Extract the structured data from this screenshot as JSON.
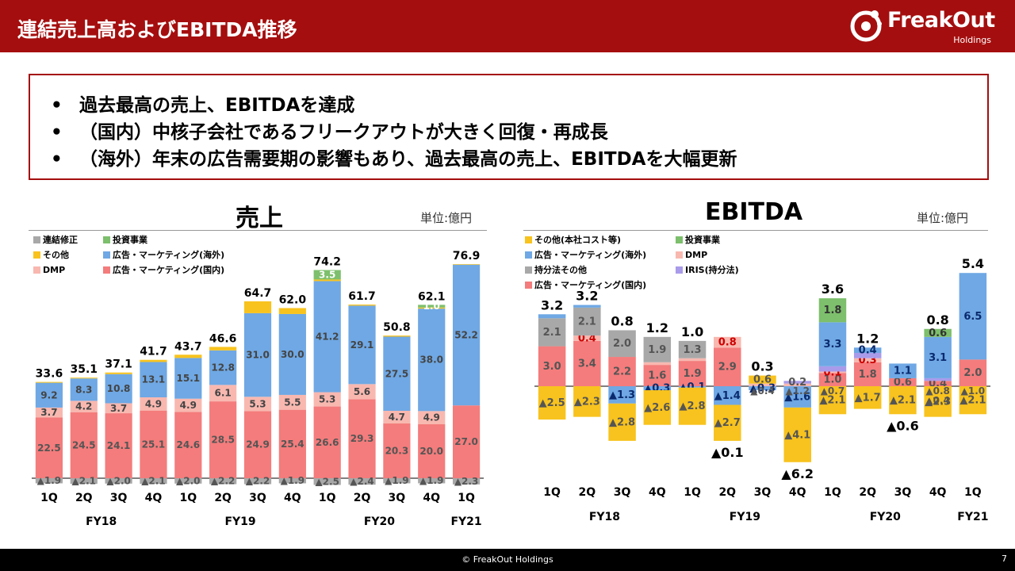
{
  "header": {
    "title": "連結売上高およびEBITDA推移",
    "logo_text": "FreakOut",
    "logo_sub": "Holdings"
  },
  "summary": {
    "bullets": [
      "過去最高の売上、EBITDAを達成",
      "（国内）中核子会社であるフリークアウトが大きく回復・再成長",
      "（海外）年末の広告需要期の影響もあり、過去最高の売上、EBITDAを大幅更新"
    ]
  },
  "colors": {
    "brand": "#a50e0e",
    "ad_domestic": "#f47c7c",
    "dmp": "#f8b8b0",
    "ad_overseas": "#6fa8e4",
    "other": "#f8c31e",
    "investment": "#7dbf6c",
    "consolidation": "#a8a8a8",
    "equity_other": "#a8a8a8",
    "iris": "#a99bea",
    "neg_label": "#0a2a6e"
  },
  "chart_data": [
    {
      "type": "bar",
      "title": "売上",
      "unit": "単位:億円",
      "quarters": [
        "1Q",
        "2Q",
        "3Q",
        "4Q",
        "1Q",
        "2Q",
        "3Q",
        "4Q",
        "1Q",
        "2Q",
        "3Q",
        "4Q",
        "1Q"
      ],
      "fiscal_years": [
        {
          "label": "FY18",
          "span": [
            0,
            3
          ]
        },
        {
          "label": "FY19",
          "span": [
            4,
            7
          ]
        },
        {
          "label": "FY20",
          "span": [
            8,
            11
          ]
        },
        {
          "label": "FY21",
          "span": [
            12,
            12
          ]
        }
      ],
      "totals": [
        "33.6",
        "35.1",
        "37.1",
        "41.7",
        "43.7",
        "46.6",
        "64.7",
        "62.0",
        "74.2",
        "61.7",
        "50.8",
        "62.1",
        "76.9"
      ],
      "series": [
        {
          "name": "広告・マーケティング(国内)",
          "key": "ad_domestic",
          "values": [
            22.5,
            24.5,
            24.1,
            25.1,
            24.6,
            28.5,
            24.9,
            25.4,
            26.6,
            29.3,
            20.3,
            20.0,
            27.0
          ],
          "labels": [
            "22.5",
            "24.5",
            "24.1",
            "25.1",
            "24.6",
            "28.5",
            "24.9",
            "25.4",
            "26.6",
            "29.3",
            "20.3",
            "20.0",
            "27.0"
          ]
        },
        {
          "name": "DMP",
          "key": "dmp",
          "values": [
            3.7,
            4.2,
            3.7,
            4.9,
            4.9,
            6.1,
            5.3,
            5.5,
            5.3,
            5.6,
            4.7,
            4.9,
            0
          ],
          "labels": [
            "3.7",
            "4.2",
            "3.7",
            "4.9",
            "4.9",
            "6.1",
            "5.3",
            "5.5",
            "5.3",
            "5.6",
            "4.7",
            "4.9",
            ""
          ]
        },
        {
          "name": "広告・マーケティング(海外)",
          "key": "ad_overseas",
          "values": [
            9.2,
            8.3,
            10.8,
            13.1,
            15.1,
            12.8,
            31.0,
            30.0,
            41.2,
            29.1,
            27.5,
            38.0,
            52.2
          ],
          "labels": [
            "9.2",
            "8.3",
            "10.8",
            "13.1",
            "15.1",
            "12.8",
            "31.0",
            "30.0",
            "41.2",
            "29.1",
            "27.5",
            "38.0",
            "52.2"
          ]
        },
        {
          "name": "その他",
          "key": "other",
          "values": [
            0.3,
            0.3,
            0.6,
            0.8,
            1.2,
            1.3,
            4.4,
            2.2,
            0.6,
            0.4,
            0.4,
            0.4,
            0.2
          ],
          "labels": [
            "",
            "",
            "",
            "",
            "",
            "",
            "",
            "",
            "",
            "",
            "",
            "",
            ""
          ]
        },
        {
          "name": "投資事業",
          "key": "investment",
          "values": [
            0,
            0,
            0,
            0,
            0,
            0,
            0,
            0,
            3.5,
            0,
            0,
            1.0,
            0
          ],
          "labels": [
            "",
            "",
            "",
            "",
            "",
            "",
            "",
            "",
            "3.5",
            "",
            "",
            "1.0",
            ""
          ]
        },
        {
          "name": "連結修正",
          "key": "consolidation",
          "values": [
            -1.9,
            -2.1,
            -2.0,
            -2.1,
            -2.0,
            -2.2,
            -2.2,
            -1.9,
            -2.5,
            -2.4,
            -1.9,
            -1.9,
            -2.3
          ],
          "labels": [
            "▲1.9",
            "▲2.1",
            "▲2.0",
            "▲2.1",
            "▲2.0",
            "▲2.2",
            "▲2.2",
            "▲1.9",
            "▲2.5",
            "▲2.4",
            "▲1.9",
            "▲1.9",
            "▲2.3"
          ]
        }
      ],
      "legend": [
        {
          "label": "連結修正",
          "key": "consolidation"
        },
        {
          "label": "投資事業",
          "key": "investment"
        },
        {
          "label": "その他",
          "key": "other"
        },
        {
          "label": "広告・マーケティング(海外)",
          "key": "ad_overseas"
        },
        {
          "label": "DMP",
          "key": "dmp"
        },
        {
          "label": "広告・マーケティング(国内)",
          "key": "ad_domestic"
        }
      ]
    },
    {
      "type": "bar",
      "title": "EBITDA",
      "unit": "単位:億円",
      "quarters": [
        "1Q",
        "2Q",
        "3Q",
        "4Q",
        "1Q",
        "2Q",
        "3Q",
        "4Q",
        "1Q",
        "2Q",
        "3Q",
        "4Q",
        "1Q"
      ],
      "fiscal_years": [
        {
          "label": "FY18",
          "span": [
            0,
            3
          ]
        },
        {
          "label": "FY19",
          "span": [
            4,
            7
          ]
        },
        {
          "label": "FY20",
          "span": [
            8,
            11
          ]
        },
        {
          "label": "FY21",
          "span": [
            12,
            12
          ]
        }
      ],
      "totals": [
        "3.2",
        "3.2",
        "0.8",
        "1.2",
        "1.0",
        "▲0.1",
        "0.3",
        "▲6.2",
        "3.6",
        "1.2",
        "▲0.6",
        "0.8",
        "5.4"
      ],
      "series": [
        {
          "name": "広告・マーケティング(国内)",
          "key": "ad_domestic",
          "values": [
            3.0,
            3.4,
            2.2,
            1.6,
            1.9,
            2.9,
            0,
            0,
            1.0,
            1.8,
            0.6,
            0.4,
            2.0
          ],
          "labels": [
            "3.0",
            "3.4",
            "2.2",
            "1.6",
            "1.9",
            "2.9",
            "",
            "",
            "1.0",
            "1.8",
            "0.6",
            "0.4",
            "2.0"
          ]
        },
        {
          "name": "DMP",
          "key": "dmp",
          "values": [
            0,
            0.4,
            0,
            0.2,
            0.2,
            0.8,
            0.2,
            0.2,
            0.1,
            0.3,
            0,
            0,
            0
          ],
          "labels": [
            "",
            "0.4",
            "",
            "",
            "",
            "0.8",
            "",
            "",
            "0.1",
            "0.3",
            "",
            "",
            ""
          ]
        },
        {
          "name": "IRIS(持分法)",
          "key": "iris",
          "values": [
            0,
            0,
            0,
            0,
            0,
            0,
            0,
            0.2,
            0.4,
            0.4,
            0,
            0.2,
            0
          ],
          "labels": [
            "",
            "",
            "",
            "",
            "",
            "",
            "",
            "0.2",
            "",
            "",
            "",
            "",
            ""
          ]
        },
        {
          "name": "持分法その他",
          "key": "equity_other",
          "values": [
            2.1,
            2.1,
            2.0,
            1.9,
            1.3,
            0,
            0,
            0,
            0,
            0,
            0,
            0,
            0
          ],
          "labels": [
            "2.1",
            "2.1",
            "2.0",
            "1.9",
            "1.3",
            "",
            "",
            "",
            "",
            "",
            "",
            "",
            ""
          ]
        },
        {
          "name": "広告・マーケティング(海外)",
          "key": "ad_overseas",
          "values": [
            0.3,
            0.2,
            -1.3,
            -0.3,
            -0.1,
            -1.4,
            -0.3,
            -1.6,
            3.3,
            0.4,
            1.1,
            3.1,
            6.5
          ],
          "labels": [
            "",
            "",
            "▲1.3",
            "▲0.3",
            "▲0.1",
            "▲1.4",
            "▲0.3",
            "▲1.6",
            "3.3",
            "0.4",
            "1.1",
            "3.1",
            "6.5"
          ]
        },
        {
          "name": "投資事業",
          "key": "investment",
          "values": [
            0,
            0,
            0,
            0,
            0,
            0,
            0,
            0,
            1.8,
            0,
            0,
            0.6,
            0
          ],
          "labels": [
            "",
            "",
            "",
            "",
            "",
            "",
            "",
            "",
            "1.8",
            "",
            "",
            "0.6",
            ""
          ]
        },
        {
          "name": "その他(本社コスト等)",
          "key": "other",
          "values": [
            -2.5,
            -2.3,
            -2.8,
            -2.6,
            -2.8,
            -2.7,
            0.6,
            -4.1,
            -2.1,
            -1.7,
            -2.1,
            -2.3,
            -2.1
          ],
          "labels": [
            "▲2.5",
            "▲2.3",
            "▲2.8",
            "▲2.6",
            "▲2.8",
            "▲2.7",
            "0.6",
            "▲4.1",
            "▲2.1",
            "▲1.7",
            "▲2.1",
            "▲2.3",
            "▲2.1"
          ]
        }
      ],
      "extra_neg_labels": [
        "",
        "",
        "",
        "",
        "",
        "",
        "▲0.4",
        "▲1.2",
        "▲0.7",
        "",
        "",
        "▲0.8/▲0.4",
        "▲1.0"
      ],
      "legend": [
        {
          "label": "その他(本社コスト等)",
          "key": "other"
        },
        {
          "label": "投資事業",
          "key": "investment"
        },
        {
          "label": "広告・マーケティング(海外)",
          "key": "ad_overseas"
        },
        {
          "label": "DMP",
          "key": "dmp"
        },
        {
          "label": "持分法その他",
          "key": "equity_other"
        },
        {
          "label": "IRIS(持分法)",
          "key": "iris"
        },
        {
          "label": "広告・マーケティング(国内)",
          "key": "ad_domestic"
        }
      ]
    }
  ],
  "footer": {
    "copyright": "© FreakOut Holdings",
    "page": "7"
  }
}
